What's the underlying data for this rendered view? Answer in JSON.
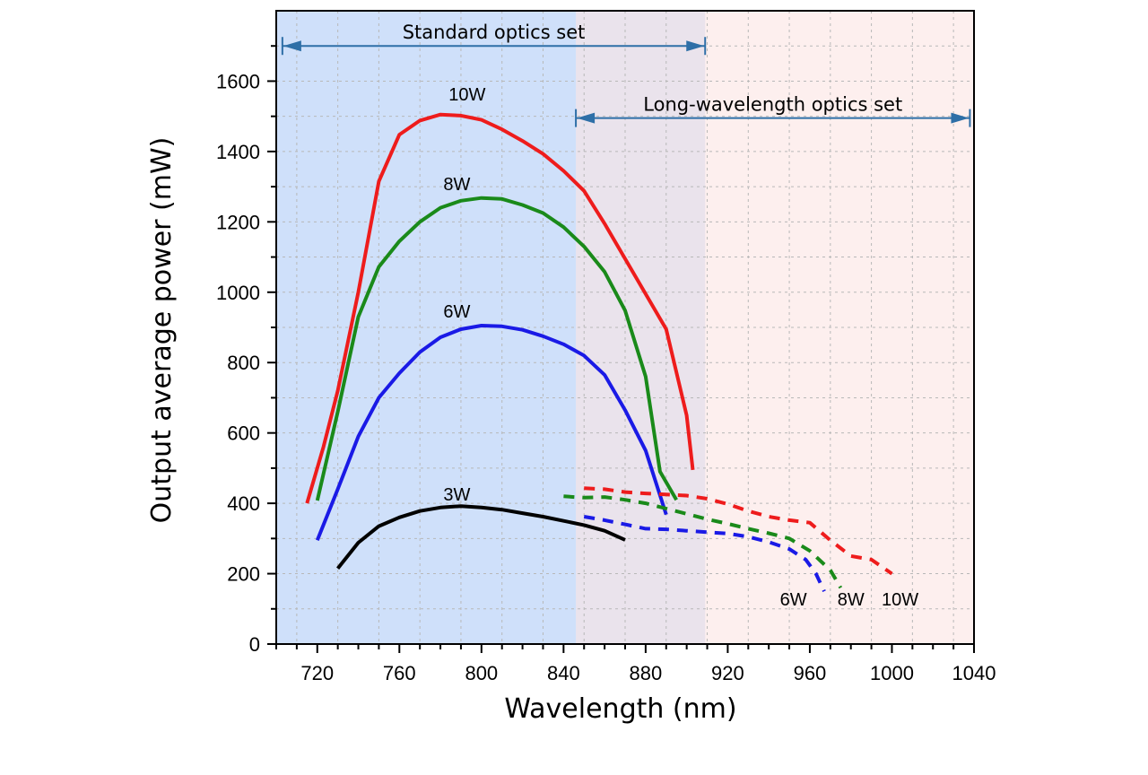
{
  "chart_data": {
    "type": "line",
    "xlabel": "Wavelength (nm)",
    "ylabel": "Output average power (mW)",
    "xlim": [
      700,
      1040
    ],
    "ylim": [
      0,
      1800
    ],
    "xticks": [
      720,
      760,
      800,
      840,
      880,
      920,
      960,
      1000,
      1040
    ],
    "yticks": [
      0,
      200,
      400,
      600,
      800,
      1000,
      1200,
      1400,
      1600
    ],
    "grid": true,
    "regions": [
      {
        "x_from": 700,
        "x_to": 909,
        "color": "#cfe0fa"
      },
      {
        "x_from": 846,
        "x_to": 1040,
        "color": "#fbe4e2"
      }
    ],
    "annotations": [
      {
        "text": "Standard optics set",
        "x_from": 703,
        "x_to": 909,
        "y": 1700,
        "color": "#2e6fa7"
      },
      {
        "text": "Long-wavelength optics set",
        "x_from": 846,
        "x_to": 1038,
        "y": 1495,
        "color": "#2e6fa7"
      }
    ],
    "series": [
      {
        "name": "10W",
        "color": "#ee1c1c",
        "style": "solid",
        "x": [
          715,
          723,
          730,
          740,
          750,
          760,
          770,
          780,
          790,
          800,
          810,
          820,
          830,
          840,
          850,
          860,
          870,
          880,
          890,
          900,
          903
        ],
        "y": [
          400,
          560,
          720,
          1000,
          1315,
          1448,
          1488,
          1505,
          1502,
          1490,
          1463,
          1430,
          1393,
          1345,
          1288,
          1195,
          1095,
          995,
          895,
          650,
          495
        ]
      },
      {
        "name": "8W",
        "color": "#1a8a1a",
        "style": "solid",
        "x": [
          720,
          730,
          740,
          750,
          760,
          770,
          780,
          790,
          800,
          810,
          820,
          830,
          840,
          850,
          860,
          870,
          880,
          887,
          895
        ],
        "y": [
          408,
          660,
          930,
          1072,
          1145,
          1200,
          1240,
          1260,
          1268,
          1265,
          1248,
          1225,
          1185,
          1130,
          1058,
          948,
          760,
          490,
          410
        ]
      },
      {
        "name": "6W",
        "color": "#1a1ae6",
        "style": "solid",
        "x": [
          720,
          730,
          740,
          750,
          760,
          770,
          780,
          790,
          800,
          810,
          820,
          830,
          840,
          850,
          860,
          870,
          880,
          890
        ],
        "y": [
          295,
          440,
          590,
          700,
          770,
          830,
          872,
          895,
          905,
          903,
          893,
          875,
          852,
          820,
          765,
          665,
          550,
          368
        ]
      },
      {
        "name": "3W",
        "color": "#000000",
        "style": "solid",
        "x": [
          730,
          740,
          750,
          760,
          770,
          780,
          790,
          800,
          810,
          820,
          830,
          840,
          850,
          860,
          870
        ],
        "y": [
          215,
          288,
          335,
          360,
          378,
          388,
          392,
          388,
          382,
          372,
          362,
          350,
          338,
          322,
          296
        ]
      },
      {
        "name": "10W",
        "color": "#ee1c1c",
        "style": "dashed",
        "x": [
          850,
          860,
          870,
          880,
          890,
          900,
          910,
          920,
          930,
          940,
          950,
          960,
          970,
          980,
          990,
          1000
        ],
        "y": [
          443,
          440,
          432,
          428,
          425,
          422,
          413,
          398,
          378,
          362,
          352,
          345,
          295,
          250,
          240,
          200
        ]
      },
      {
        "name": "8W",
        "color": "#1a8a1a",
        "style": "dashed",
        "x": [
          840,
          850,
          860,
          870,
          880,
          890,
          900,
          910,
          920,
          930,
          940,
          950,
          960,
          970,
          975
        ],
        "y": [
          420,
          416,
          418,
          410,
          400,
          385,
          370,
          355,
          342,
          328,
          315,
          300,
          265,
          210,
          160
        ]
      },
      {
        "name": "6W",
        "color": "#1a1ae6",
        "style": "dashed",
        "x": [
          850,
          860,
          870,
          880,
          890,
          900,
          910,
          920,
          930,
          940,
          950,
          958,
          963,
          967
        ],
        "y": [
          362,
          352,
          340,
          328,
          326,
          322,
          318,
          314,
          305,
          290,
          270,
          240,
          200,
          150
        ]
      }
    ],
    "series_labels": [
      {
        "text": "10W",
        "x": 793,
        "y": 1545
      },
      {
        "text": "8W",
        "x": 788,
        "y": 1290
      },
      {
        "text": "6W",
        "x": 788,
        "y": 928
      },
      {
        "text": "3W",
        "x": 788,
        "y": 408
      },
      {
        "text": "6W",
        "x": 952,
        "y": 110
      },
      {
        "text": "8W",
        "x": 980,
        "y": 110
      },
      {
        "text": "10W",
        "x": 1004,
        "y": 110
      }
    ]
  }
}
